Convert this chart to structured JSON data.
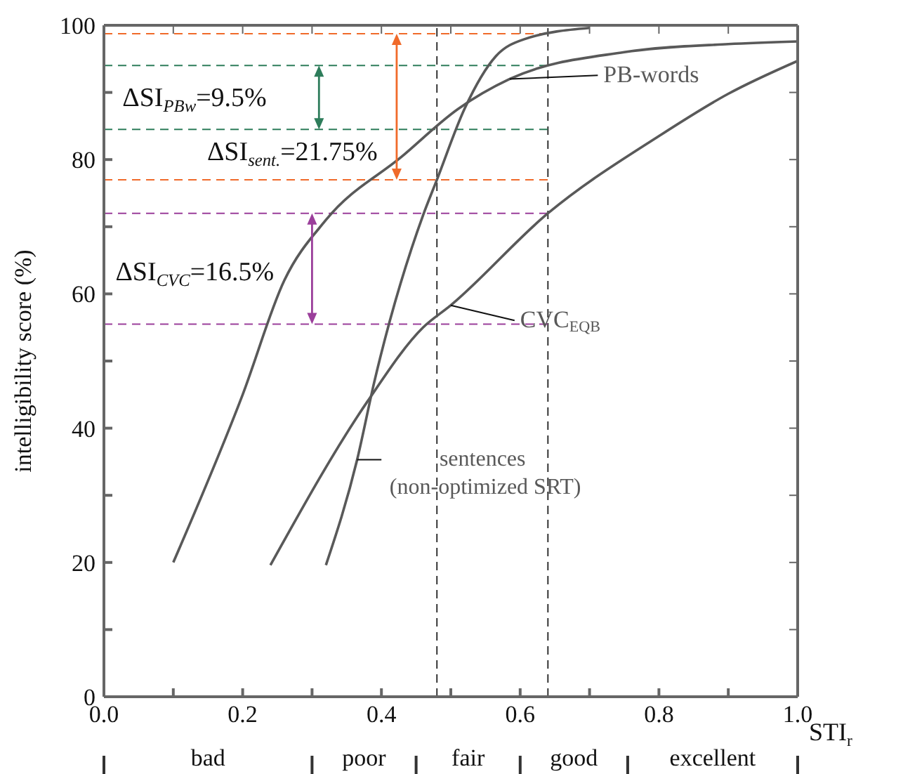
{
  "chart_data": {
    "type": "line",
    "xlabel": "STI$_{r}$",
    "ylabel": "intelligibility score (%)",
    "xlim": [
      0,
      1
    ],
    "xticks": [
      {
        "value": 0,
        "label": "0.0"
      },
      {
        "value": 0.1,
        "label": null
      },
      {
        "value": 0.2,
        "label": "0.2"
      },
      {
        "value": 0.3,
        "label": null
      },
      {
        "value": 0.4,
        "label": "0.4"
      },
      {
        "value": 0.5,
        "label": null
      },
      {
        "value": 0.6,
        "label": "0.6"
      },
      {
        "value": 0.7,
        "label": null
      },
      {
        "value": 0.8,
        "label": "0.8"
      },
      {
        "value": 0.9,
        "label": null
      },
      {
        "value": 1,
        "label": "1.0"
      }
    ],
    "ylim": [
      0,
      100
    ],
    "yticks": [
      0,
      {
        "value": 10,
        "label": null
      },
      20,
      {
        "value": 30,
        "label": null
      },
      40,
      {
        "value": 50,
        "label": null
      },
      60,
      {
        "value": 70,
        "label": null
      },
      80,
      {
        "value": 90,
        "label": null
      },
      100
    ],
    "grid": false,
    "marker": "none",
    "line_style": "solid",
    "series": [
      {
        "name": "PB-words",
        "color": "#595959",
        "x": [
          0.1,
          0.2,
          0.26,
          0.32,
          0.43,
          0.51,
          0.585,
          0.75,
          0.9,
          1.0
        ],
        "values": [
          20,
          45,
          62,
          71,
          80.5,
          87.5,
          92,
          96,
          97.2,
          97.6
        ]
      },
      {
        "name": "CVC$_{EQB}$",
        "color": "#595959",
        "x": [
          0.24,
          0.38,
          0.46,
          0.5,
          0.64,
          0.8,
          0.9,
          1.0
        ],
        "values": [
          19.6,
          44,
          55,
          58.3,
          72,
          83.5,
          89.8,
          94.7
        ]
      },
      {
        "name": "sentences (non-optimized SRT)",
        "color": "#595959",
        "x": [
          0.32,
          0.365,
          0.39,
          0.46,
          0.48,
          0.52,
          0.565,
          0.605,
          0.7
        ],
        "values": [
          19.6,
          35.3,
          47,
          71.7,
          77,
          87.6,
          95.4,
          97.9,
          99.6
        ]
      }
    ],
    "ref_lines": [
      {
        "axis": "x",
        "value": 0.48,
        "color": "#333333",
        "line_style": "dashed"
      },
      {
        "axis": "x",
        "value": 0.64,
        "color": "#333333",
        "line_style": "dashed"
      },
      {
        "axis": "y",
        "value": 94,
        "color": "#2e7d5b",
        "line_style": "dashed"
      },
      {
        "axis": "y",
        "value": 84.5,
        "color": "#2e7d5b",
        "line_style": "dashed"
      },
      {
        "axis": "y",
        "value": 98.75,
        "color": "#f06a2a",
        "line_style": "dashed"
      },
      {
        "axis": "y",
        "value": 77,
        "color": "#f06a2a",
        "line_style": "dashed"
      },
      {
        "axis": "y",
        "value": 72,
        "color": "#9b3f9b",
        "line_style": "dashed"
      },
      {
        "axis": "y",
        "value": 55.5,
        "color": "#9b3f9b",
        "line_style": "dashed"
      }
    ],
    "annotations": [
      "ΔSI$_{PBw}$=9.5%",
      "ΔSI$_{sent.}$=21.75%",
      "ΔSI$_{CVC}$=16.5%",
      "bad",
      "poor",
      "fair",
      "good",
      "excellent"
    ]
  }
}
